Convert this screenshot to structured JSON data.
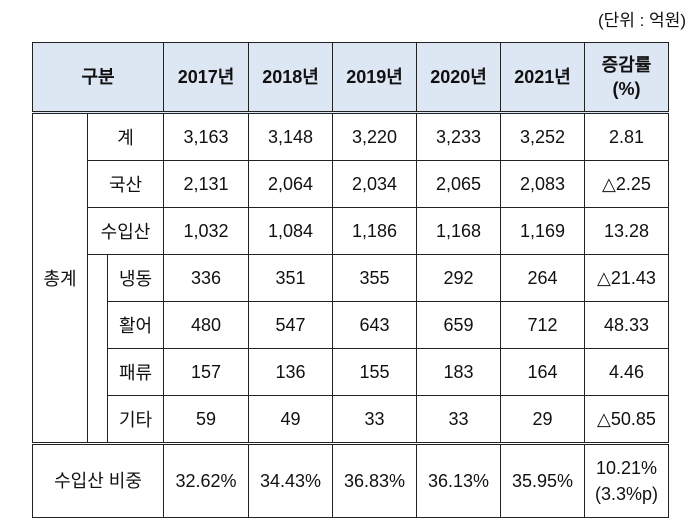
{
  "unit_note": "(단위 : 억원)",
  "headers": {
    "category": "구분",
    "years": [
      "2017년",
      "2018년",
      "2019년",
      "2020년",
      "2021년"
    ],
    "change": [
      "증감률",
      "(%)"
    ]
  },
  "group_label": "총계",
  "rows": [
    {
      "label": "계",
      "values": [
        "3,163",
        "3,148",
        "3,220",
        "3,233",
        "3,252"
      ],
      "change": "2.81"
    },
    {
      "label": "국산",
      "values": [
        "2,131",
        "2,064",
        "2,034",
        "2,065",
        "2,083"
      ],
      "change": "△2.25"
    },
    {
      "label": "수입산",
      "values": [
        "1,032",
        "1,084",
        "1,186",
        "1,168",
        "1,169"
      ],
      "change": "13.28"
    },
    {
      "label": "냉동",
      "values": [
        "336",
        "351",
        "355",
        "292",
        "264"
      ],
      "change": "△21.43"
    },
    {
      "label": "활어",
      "values": [
        "480",
        "547",
        "643",
        "659",
        "712"
      ],
      "change": "48.33"
    },
    {
      "label": "패류",
      "values": [
        "157",
        "136",
        "155",
        "183",
        "164"
      ],
      "change": "4.46"
    },
    {
      "label": "기타",
      "values": [
        "59",
        "49",
        "33",
        "33",
        "29"
      ],
      "change": "△50.85"
    }
  ],
  "ratio_row": {
    "label": "수입산 비중",
    "values": [
      "32.62%",
      "34.43%",
      "36.83%",
      "36.13%",
      "35.95%"
    ],
    "change": [
      "10.21%",
      "(3.3%p)"
    ]
  }
}
